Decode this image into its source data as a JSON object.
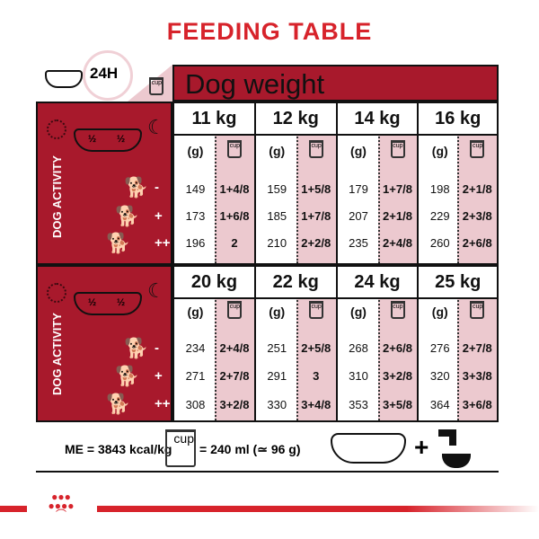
{
  "title": "FEEDING TABLE",
  "header": {
    "daily": "24H",
    "weight_label": "Dog weight",
    "cup": "cup"
  },
  "side": {
    "activity_label": "DOG ACTIVITY",
    "half": "½",
    "levels": [
      "-",
      "+",
      "++"
    ]
  },
  "units": {
    "grams": "(g)",
    "cup": "cup"
  },
  "blocks": [
    {
      "weights": [
        {
          "kg": "11 kg",
          "g": [
            "149",
            "173",
            "196"
          ],
          "cups": [
            "1+4/8",
            "1+6/8",
            "2"
          ]
        },
        {
          "kg": "12 kg",
          "g": [
            "159",
            "185",
            "210"
          ],
          "cups": [
            "1+5/8",
            "1+7/8",
            "2+2/8"
          ]
        },
        {
          "kg": "14 kg",
          "g": [
            "179",
            "207",
            "235"
          ],
          "cups": [
            "1+7/8",
            "2+1/8",
            "2+4/8"
          ]
        },
        {
          "kg": "16 kg",
          "g": [
            "198",
            "229",
            "260"
          ],
          "cups": [
            "2+1/8",
            "2+3/8",
            "2+6/8"
          ]
        }
      ]
    },
    {
      "weights": [
        {
          "kg": "20 kg",
          "g": [
            "234",
            "271",
            "308"
          ],
          "cups": [
            "2+4/8",
            "2+7/8",
            "3+2/8"
          ]
        },
        {
          "kg": "22 kg",
          "g": [
            "251",
            "291",
            "330"
          ],
          "cups": [
            "2+5/8",
            "3",
            "3+4/8"
          ]
        },
        {
          "kg": "24 kg",
          "g": [
            "268",
            "310",
            "353"
          ],
          "cups": [
            "2+6/8",
            "3+2/8",
            "3+5/8"
          ]
        },
        {
          "kg": "25 kg",
          "g": [
            "276",
            "320",
            "364"
          ],
          "cups": [
            "2+7/8",
            "3+3/8",
            "3+6/8"
          ]
        }
      ]
    }
  ],
  "footer": {
    "energy": "ME = 3843 kcal/kg",
    "cup": "cup",
    "cup_equiv": "= 240 ml (≃ 96 g)",
    "plus": "+"
  },
  "colors": {
    "title": "#d7232b",
    "panel": "#a8192c",
    "cup_column": "#ecc9cf"
  }
}
